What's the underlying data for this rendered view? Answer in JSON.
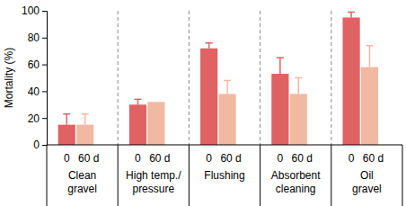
{
  "chart_data": {
    "type": "bar",
    "y_label": "Mortality (%)",
    "categories": [
      "Clean gravel",
      "High temp./pressure",
      "Flushing",
      "Absorbent cleaning",
      "Oil gravel"
    ],
    "series": [
      {
        "name": "0",
        "color": "#e06262",
        "values": [
          15,
          30,
          72,
          53,
          95
        ],
        "errors": [
          8,
          4,
          4,
          12,
          4
        ]
      },
      {
        "name": "60 d",
        "color": "#f2b9a2",
        "values": [
          15,
          32,
          38,
          38,
          58
        ],
        "errors": [
          8,
          null,
          10,
          12,
          16
        ]
      }
    ],
    "ylim": [
      0,
      100
    ],
    "yticks": [
      0,
      20,
      40,
      60,
      80,
      100
    ],
    "grid": false
  }
}
